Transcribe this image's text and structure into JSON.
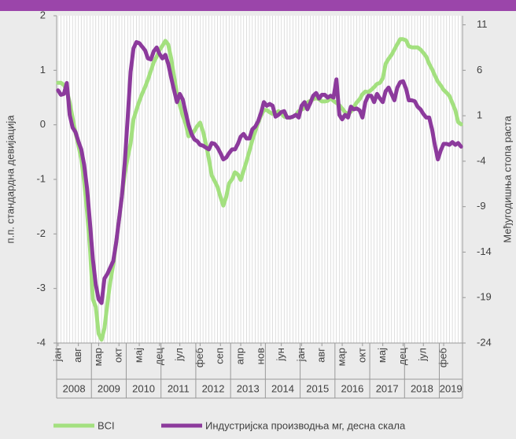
{
  "chart_data": {
    "type": "line",
    "y_label": "п.п. стандардна девијација",
    "y2_label": "Међугодишња стопа раста",
    "categories": [
      "јан",
      null,
      null,
      null,
      null,
      null,
      null,
      "авг",
      null,
      null,
      null,
      null,
      null,
      null,
      "мар",
      null,
      null,
      null,
      null,
      null,
      null,
      "окт",
      null,
      null,
      null,
      null,
      null,
      null,
      "мај",
      null,
      null,
      null,
      null,
      null,
      null,
      "дец",
      null,
      null,
      null,
      null,
      null,
      null,
      "јул",
      null,
      null,
      null,
      null,
      null,
      null,
      "феб",
      null,
      null,
      null,
      null,
      null,
      null,
      "сеп",
      null,
      null,
      null,
      null,
      null,
      null,
      "апр",
      null,
      null,
      null,
      null,
      null,
      null,
      "нов",
      null,
      null,
      null,
      null,
      null,
      null,
      "јун",
      null,
      null,
      null,
      null,
      null,
      null,
      "јан",
      null,
      null,
      null,
      null,
      null,
      null,
      "авг",
      null,
      null,
      null,
      null,
      null,
      null,
      "мар",
      null,
      null,
      null,
      null,
      null,
      null,
      "окт",
      null,
      null,
      null,
      null,
      null,
      null,
      "мај",
      null,
      null,
      null,
      null,
      null,
      null,
      "дец",
      null,
      null,
      null,
      null,
      null,
      null,
      "јул",
      null,
      null,
      null,
      null,
      null,
      null,
      "феб",
      null,
      null,
      null,
      null,
      null,
      null
    ],
    "years": [
      "2008",
      "2009",
      "2010",
      "2011",
      "2012",
      "2013",
      "2014",
      "2015",
      "2016",
      "2017",
      "2018",
      "2019"
    ],
    "ylim": [
      -4,
      2
    ],
    "yticks": [
      -4,
      -3,
      -2,
      -1,
      0,
      1,
      2
    ],
    "y2lim": [
      -24,
      12
    ],
    "y2ticks": [
      -24,
      -19,
      -14,
      -9,
      -4,
      1,
      6,
      11
    ],
    "series": [
      {
        "name": "BCI",
        "color": "#a3e07f",
        "values": [
          0.77,
          0.77,
          0.73,
          0.63,
          0.41,
          0.13,
          -0.15,
          -0.37,
          -0.62,
          -1.04,
          -1.6,
          -2.26,
          -3.2,
          -3.34,
          -3.83,
          -3.94,
          -3.73,
          -3.28,
          -2.87,
          -2.57,
          -2.17,
          -1.75,
          -1.32,
          -0.9,
          -0.6,
          -0.34,
          0.1,
          0.27,
          0.43,
          0.57,
          0.69,
          0.83,
          0.99,
          1.15,
          1.25,
          1.37,
          1.45,
          1.54,
          1.47,
          1.22,
          0.89,
          0.57,
          0.36,
          0.17,
          0.02,
          -0.21,
          -0.19,
          -0.11,
          -0.02,
          0.04,
          -0.12,
          -0.35,
          -0.62,
          -0.93,
          -1.03,
          -1.14,
          -1.32,
          -1.48,
          -1.32,
          -1.07,
          -1.0,
          -0.87,
          -0.91,
          -1.01,
          -0.84,
          -0.67,
          -0.48,
          -0.28,
          -0.12,
          0.04,
          0.17,
          0.27,
          0.27,
          0.23,
          0.2,
          0.2,
          0.25,
          0.21,
          0.15,
          0.14,
          0.13,
          0.15,
          0.18,
          0.25,
          0.28,
          0.31,
          0.41,
          0.44,
          0.47,
          0.49,
          0.47,
          0.43,
          0.43,
          0.44,
          0.49,
          0.44,
          0.4,
          0.36,
          0.3,
          0.23,
          0.2,
          0.24,
          0.33,
          0.41,
          0.47,
          0.56,
          0.61,
          0.6,
          0.64,
          0.69,
          0.75,
          0.77,
          0.85,
          1.12,
          1.21,
          1.28,
          1.38,
          1.48,
          1.57,
          1.57,
          1.55,
          1.44,
          1.42,
          1.42,
          1.42,
          1.38,
          1.32,
          1.25,
          1.12,
          1.02,
          0.9,
          0.79,
          0.72,
          0.64,
          0.59,
          0.53,
          0.4,
          0.27,
          0.05,
          0.01
        ]
      },
      {
        "name": "Индустријска производња мг, десна скала",
        "color": "#8c3a9c",
        "axis": "y2",
        "values": [
          3.8,
          3.3,
          3.4,
          4.6,
          1.1,
          -0.3,
          -0.8,
          -1.8,
          -2.7,
          -4.4,
          -7.0,
          -10.8,
          -14.8,
          -17.6,
          -19.2,
          -19.6,
          -16.9,
          -16.4,
          -15.7,
          -15.0,
          -13.0,
          -10.5,
          -7.9,
          -4.2,
          0.7,
          5.8,
          8.4,
          9.1,
          9.0,
          8.6,
          8.2,
          7.3,
          7.2,
          8.1,
          8.5,
          7.8,
          7.3,
          7.7,
          6.7,
          5.2,
          3.8,
          2.5,
          3.4,
          2.8,
          1.4,
          0.0,
          -1.0,
          -1.6,
          -1.8,
          -2.2,
          -2.3,
          -2.5,
          -2.7,
          -2.0,
          -2.1,
          -2.5,
          -3.1,
          -3.8,
          -3.6,
          -3.1,
          -2.7,
          -2.7,
          -2.1,
          -1.3,
          -1.0,
          -1.5,
          -1.5,
          -0.5,
          -0.2,
          0.4,
          1.3,
          2.5,
          2.1,
          2.3,
          2.1,
          0.9,
          1.1,
          1.4,
          1.5,
          0.8,
          0.8,
          0.9,
          1.1,
          0.8,
          2.1,
          2.5,
          1.7,
          2.4,
          3.2,
          3.5,
          2.9,
          3.3,
          3.3,
          3.0,
          3.2,
          3.0,
          5.0,
          1.1,
          0.6,
          1.1,
          0.8,
          2.0,
          1.7,
          1.8,
          1.6,
          0.8,
          2.5,
          3.2,
          3.2,
          2.5,
          3.4,
          2.9,
          2.5,
          3.7,
          4.1,
          3.4,
          2.7,
          4.1,
          4.7,
          4.8,
          4.0,
          2.7,
          2.7,
          2.6,
          2.0,
          1.7,
          1.2,
          0.8,
          0.8,
          -0.5,
          -2.3,
          -3.8,
          -2.8,
          -2.1,
          -2.1,
          -2.2,
          -1.9,
          -2.2,
          -2.0,
          -2.4
        ]
      }
    ]
  }
}
